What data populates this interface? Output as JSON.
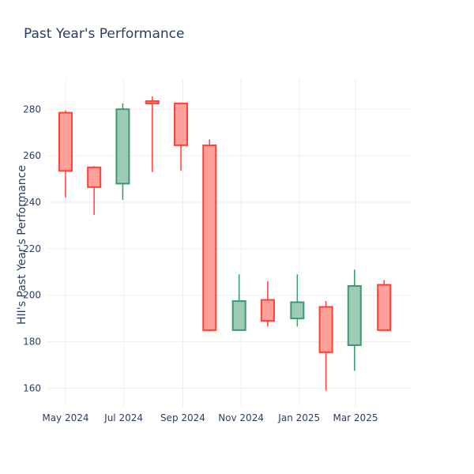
{
  "chart_data": {
    "type": "candlestick",
    "title": "Past Year's Performance",
    "xlabel": "",
    "ylabel": "HII's Past Year's Performance",
    "ylim": [
      152,
      293
    ],
    "yticks": [
      160,
      180,
      200,
      220,
      240,
      260,
      280
    ],
    "xlim": [
      "2024-04-12",
      "2025-04-28"
    ],
    "xticks": [
      {
        "date": "2024-05-01",
        "label": "May 2024"
      },
      {
        "date": "2024-07-01",
        "label": "Jul 2024"
      },
      {
        "date": "2024-09-01",
        "label": "Sep 2024"
      },
      {
        "date": "2024-11-01",
        "label": "Nov 2024"
      },
      {
        "date": "2025-01-01",
        "label": "Jan 2025"
      },
      {
        "date": "2025-03-01",
        "label": "Mar 2025"
      }
    ],
    "grid": true,
    "candles": [
      {
        "date": "2024-05-01",
        "open": 278.5,
        "high": 279.5,
        "low": 242.0,
        "close": 253.5
      },
      {
        "date": "2024-05-31",
        "open": 255.0,
        "high": 255.5,
        "low": 234.5,
        "close": 246.5
      },
      {
        "date": "2024-06-30",
        "open": 248.0,
        "high": 282.5,
        "low": 241.0,
        "close": 280.0
      },
      {
        "date": "2024-07-31",
        "open": 283.5,
        "high": 285.5,
        "low": 253.0,
        "close": 282.5
      },
      {
        "date": "2024-08-30",
        "open": 282.5,
        "high": 283.0,
        "low": 253.5,
        "close": 264.5
      },
      {
        "date": "2024-09-29",
        "open": 264.5,
        "high": 267.0,
        "low": 184.5,
        "close": 185.0
      },
      {
        "date": "2024-10-30",
        "open": 185.0,
        "high": 209.0,
        "low": 185.0,
        "close": 197.5
      },
      {
        "date": "2024-11-29",
        "open": 198.0,
        "high": 206.0,
        "low": 186.5,
        "close": 189.0
      },
      {
        "date": "2024-12-30",
        "open": 190.0,
        "high": 209.0,
        "low": 186.5,
        "close": 197.0
      },
      {
        "date": "2025-01-29",
        "open": 195.0,
        "high": 197.5,
        "low": 159.0,
        "close": 175.5
      },
      {
        "date": "2025-02-28",
        "open": 178.5,
        "high": 211.0,
        "low": 167.5,
        "close": 204.0
      },
      {
        "date": "2025-03-31",
        "open": 204.5,
        "high": 206.5,
        "low": 185.0,
        "close": 185.0
      }
    ],
    "colors": {
      "increasing_line": "#3d9970",
      "increasing_fill": "#9ecbb5",
      "decreasing_line": "#ff4136",
      "decreasing_fill": "#ffa09b",
      "grid": "#eeeeee",
      "text": "#2a3f5f"
    }
  }
}
